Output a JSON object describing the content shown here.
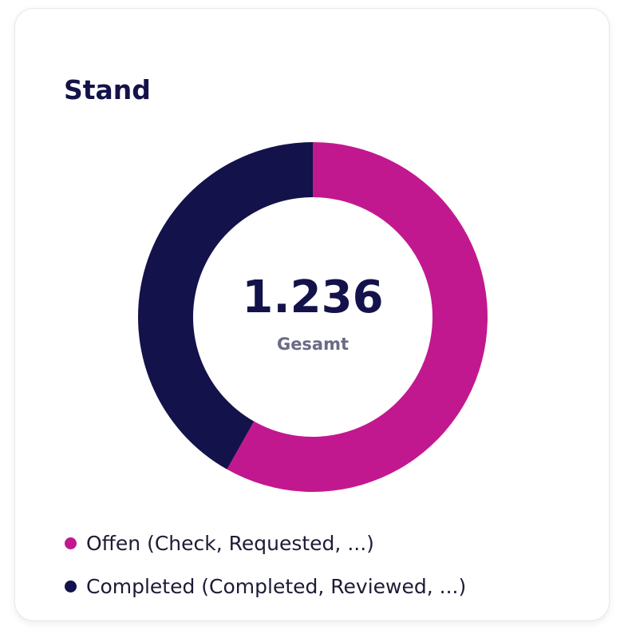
{
  "card": {
    "title": "Stand"
  },
  "chart_data": {
    "type": "pie",
    "variant": "donut",
    "title": "Stand",
    "total": "1.236",
    "total_label": "Gesamt",
    "series": [
      {
        "name": "Offen (Check, Requested, ...)",
        "value": 719,
        "color": "#c2188f"
      },
      {
        "name": "Completed (Completed, Reviewed, ...)",
        "value": 517,
        "color": "#13124a"
      }
    ],
    "start_angle": "12 o'clock",
    "direction": "clockwise",
    "legend_position": "bottom-left"
  }
}
